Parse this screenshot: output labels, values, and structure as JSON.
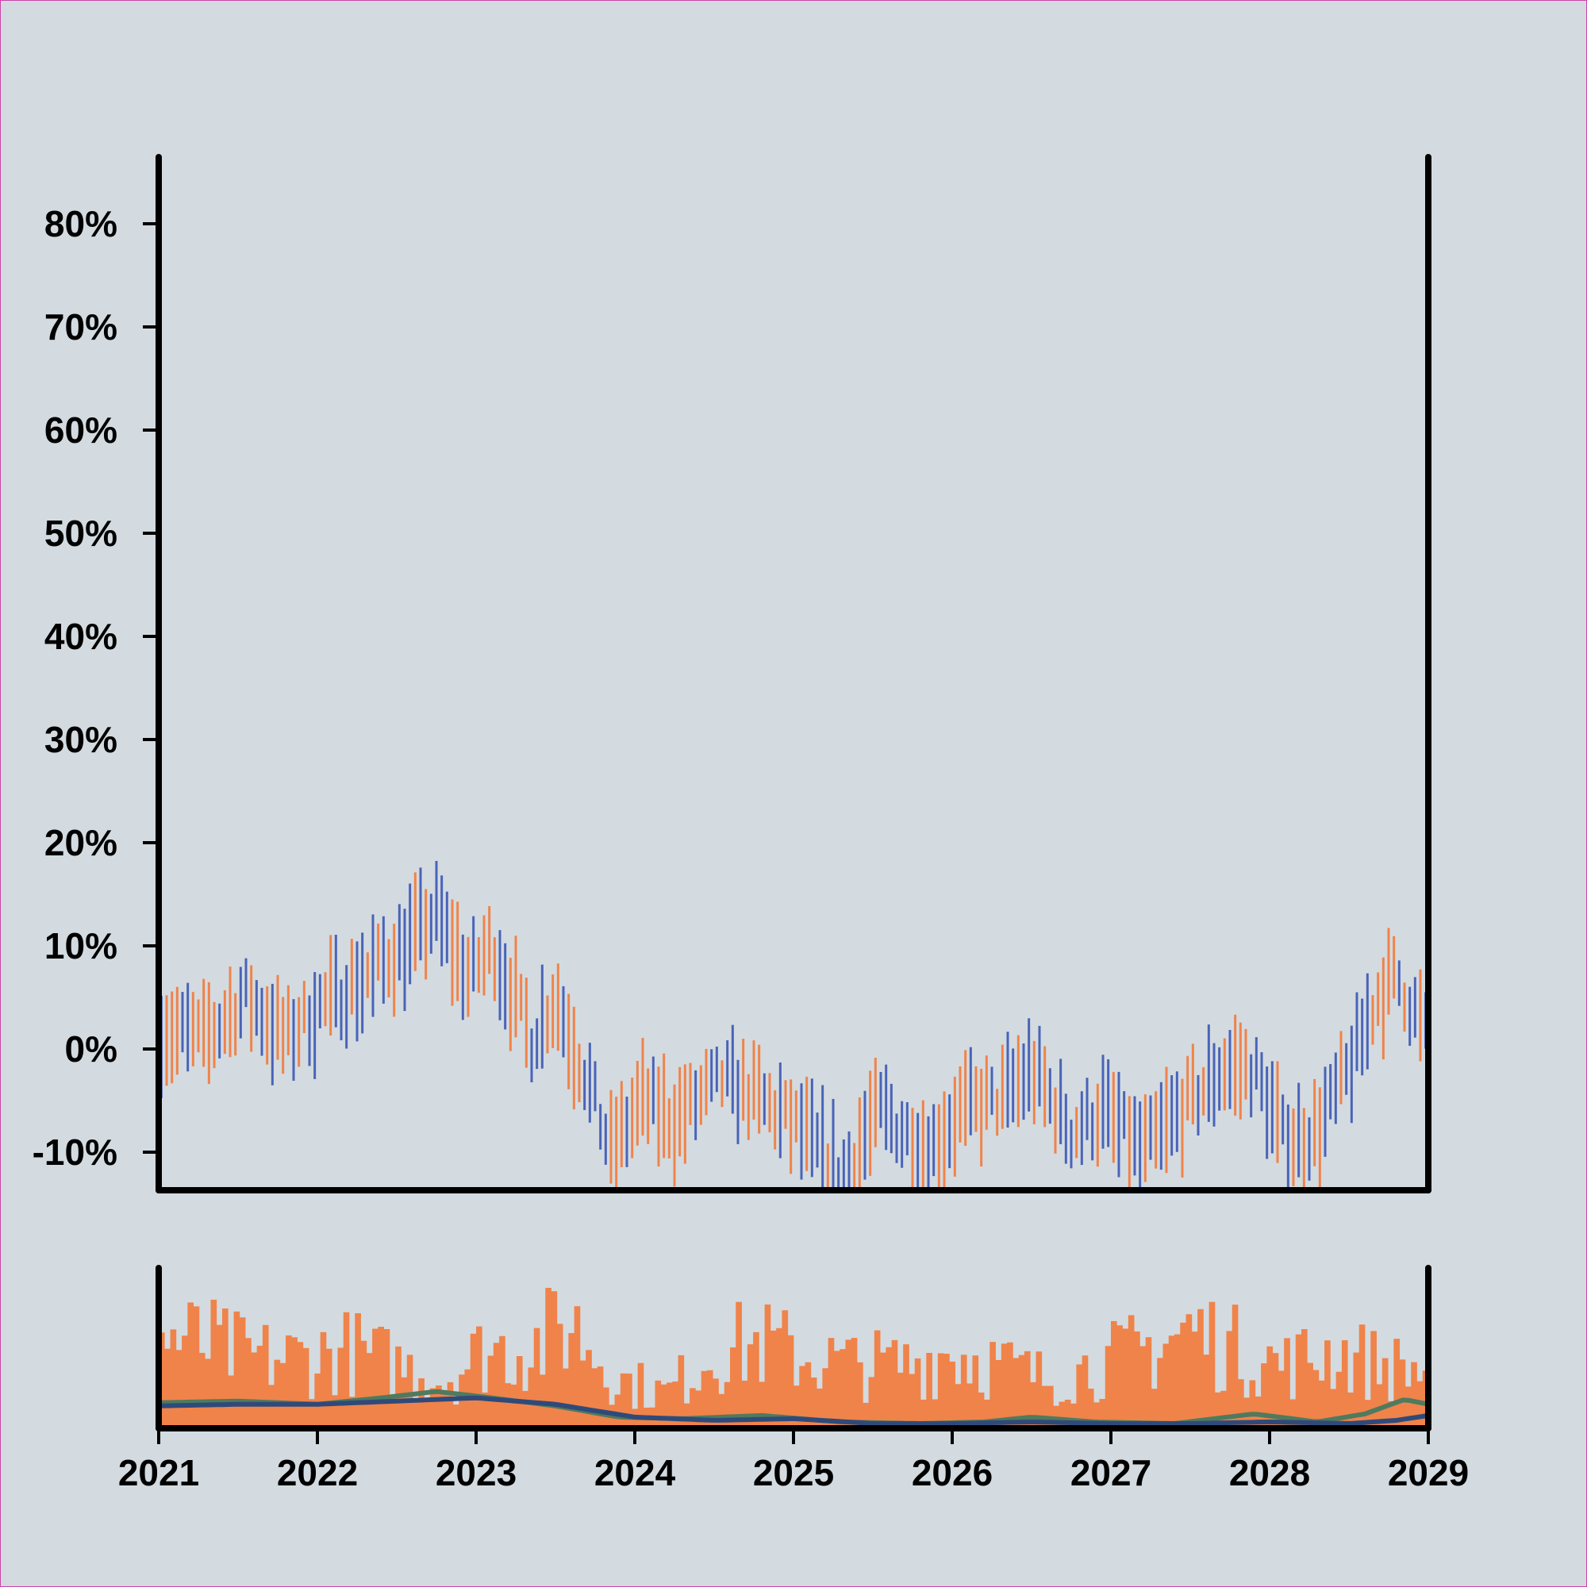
{
  "chart_data": {
    "type": "ohlc",
    "title": "",
    "xlabel": "",
    "ylabel": "",
    "y_tick_labels": [
      "-10%",
      "0%",
      "10%",
      "20%",
      "30%",
      "40%",
      "50%",
      "60%",
      "70%",
      "80%"
    ],
    "y_tick_values": [
      -10,
      0,
      10,
      20,
      30,
      40,
      50,
      60,
      70,
      80
    ],
    "x_tick_labels": [
      "2021",
      "2022",
      "2023",
      "2024",
      "2025",
      "2026",
      "2027",
      "2028",
      "2029"
    ],
    "x_tick_values": [
      2021,
      2022,
      2023,
      2024,
      2025,
      2026,
      2027,
      2028,
      2029
    ],
    "xlim": [
      2021,
      2029
    ],
    "ylim": [
      -13.5,
      86
    ],
    "grid": false,
    "colors": {
      "up": "#f0834a",
      "down": "#4a63b8",
      "volume": "#f0834a",
      "ma_fast": "#4f7a5e",
      "ma_slow": "#2f4a7a",
      "axis": "#000000",
      "background": "#d3dbe0"
    },
    "anchors": [
      [
        2021.0,
        2
      ],
      [
        2021.3,
        1
      ],
      [
        2021.55,
        5
      ],
      [
        2021.8,
        1
      ],
      [
        2022.0,
        4
      ],
      [
        2022.3,
        7
      ],
      [
        2022.55,
        10
      ],
      [
        2022.75,
        13
      ],
      [
        2022.95,
        7
      ],
      [
        2023.1,
        10
      ],
      [
        2023.35,
        1
      ],
      [
        2023.5,
        5
      ],
      [
        2023.7,
        -3
      ],
      [
        2023.85,
        -10
      ],
      [
        2024.05,
        -5
      ],
      [
        2024.25,
        -7
      ],
      [
        2024.55,
        -3
      ],
      [
        2024.8,
        -5
      ],
      [
        2025.05,
        -8
      ],
      [
        2025.3,
        -12
      ],
      [
        2025.55,
        -6
      ],
      [
        2025.85,
        -10
      ],
      [
        2026.05,
        -6
      ],
      [
        2026.3,
        -5
      ],
      [
        2026.5,
        -2
      ],
      [
        2026.75,
        -8
      ],
      [
        2026.95,
        -6
      ],
      [
        2027.2,
        -10
      ],
      [
        2027.45,
        -6
      ],
      [
        2027.7,
        -2
      ],
      [
        2027.9,
        -2
      ],
      [
        2028.1,
        -9
      ],
      [
        2028.3,
        -8
      ],
      [
        2028.5,
        -2
      ],
      [
        2028.68,
        5
      ],
      [
        2028.8,
        7
      ],
      [
        2029.0,
        1
      ]
    ],
    "volume_anchors": [
      [
        2021.0,
        0.65
      ],
      [
        2021.3,
        0.6
      ],
      [
        2021.6,
        0.5
      ],
      [
        2021.9,
        0.5
      ],
      [
        2022.2,
        0.55
      ],
      [
        2022.5,
        0.45
      ],
      [
        2022.8,
        0.35
      ],
      [
        2023.05,
        0.55
      ],
      [
        2023.4,
        0.6
      ],
      [
        2023.6,
        0.75
      ],
      [
        2023.9,
        0.35
      ],
      [
        2024.2,
        0.25
      ],
      [
        2024.5,
        0.55
      ],
      [
        2024.8,
        0.6
      ],
      [
        2025.1,
        0.5
      ],
      [
        2025.4,
        0.45
      ],
      [
        2025.7,
        0.45
      ],
      [
        2026.0,
        0.55
      ],
      [
        2026.3,
        0.45
      ],
      [
        2026.6,
        0.35
      ],
      [
        2026.9,
        0.45
      ],
      [
        2027.2,
        0.55
      ],
      [
        2027.5,
        0.7
      ],
      [
        2027.8,
        0.55
      ],
      [
        2028.1,
        0.45
      ],
      [
        2028.4,
        0.55
      ],
      [
        2028.7,
        0.45
      ],
      [
        2029.0,
        0.4
      ]
    ],
    "ma_fast_anchors": [
      [
        2021.0,
        0.13
      ],
      [
        2021.5,
        0.14
      ],
      [
        2022.0,
        0.12
      ],
      [
        2022.4,
        0.16
      ],
      [
        2022.75,
        0.2
      ],
      [
        2023.1,
        0.16
      ],
      [
        2023.5,
        0.11
      ],
      [
        2023.9,
        0.04
      ],
      [
        2024.3,
        0.03
      ],
      [
        2024.8,
        0.05
      ],
      [
        2025.3,
        0.01
      ],
      [
        2025.8,
        0.0
      ],
      [
        2026.2,
        0.01
      ],
      [
        2026.5,
        0.04
      ],
      [
        2026.9,
        0.01
      ],
      [
        2027.4,
        0.0
      ],
      [
        2027.9,
        0.06
      ],
      [
        2028.3,
        0.01
      ],
      [
        2028.6,
        0.06
      ],
      [
        2028.85,
        0.15
      ],
      [
        2029.0,
        0.12
      ]
    ],
    "ma_slow_anchors": [
      [
        2021.0,
        0.11
      ],
      [
        2021.5,
        0.12
      ],
      [
        2022.0,
        0.12
      ],
      [
        2022.5,
        0.14
      ],
      [
        2023.0,
        0.16
      ],
      [
        2023.5,
        0.12
      ],
      [
        2024.0,
        0.04
      ],
      [
        2024.5,
        0.02
      ],
      [
        2025.0,
        0.03
      ],
      [
        2025.5,
        0.0
      ],
      [
        2026.0,
        0.0
      ],
      [
        2026.5,
        0.01
      ],
      [
        2027.0,
        0.0
      ],
      [
        2027.5,
        0.0
      ],
      [
        2028.0,
        0.01
      ],
      [
        2028.5,
        0.0
      ],
      [
        2028.8,
        0.02
      ],
      [
        2029.0,
        0.05
      ]
    ]
  }
}
